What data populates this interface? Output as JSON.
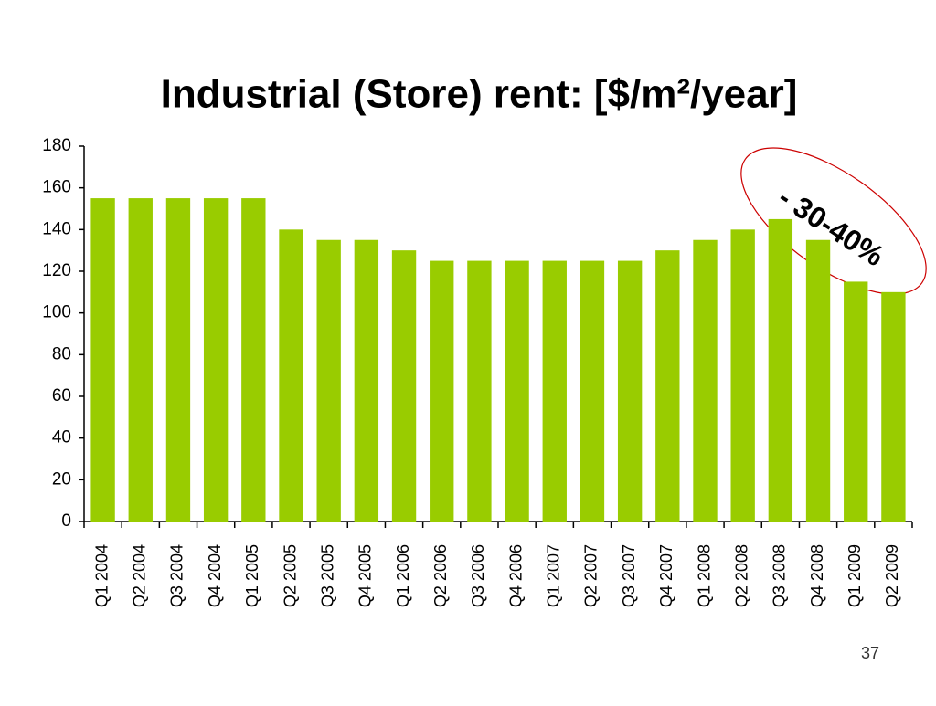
{
  "chart_data": {
    "type": "bar",
    "title": "Industrial (Store) rent: [$/m²/year]",
    "categories": [
      "Q1 2004",
      "Q2 2004",
      "Q3 2004",
      "Q4 2004",
      "Q1 2005",
      "Q2 2005",
      "Q3 2005",
      "Q4 2005",
      "Q1 2006",
      "Q2 2006",
      "Q3 2006",
      "Q4 2006",
      "Q1 2007",
      "Q2 2007",
      "Q3 2007",
      "Q4 2007",
      "Q1 2008",
      "Q2 2008",
      "Q3 2008",
      "Q4 2008",
      "Q1 2009",
      "Q2 2009"
    ],
    "values": [
      155,
      155,
      155,
      155,
      155,
      140,
      135,
      135,
      130,
      125,
      125,
      125,
      125,
      125,
      125,
      130,
      135,
      140,
      145,
      135,
      115,
      110
    ],
    "color": "#99cc00",
    "ylim": [
      0,
      180
    ],
    "yticks": [
      0,
      20,
      40,
      60,
      80,
      100,
      120,
      140,
      160,
      180
    ],
    "grid": false,
    "annotation": "- 30-40%"
  },
  "slide_number": "37"
}
